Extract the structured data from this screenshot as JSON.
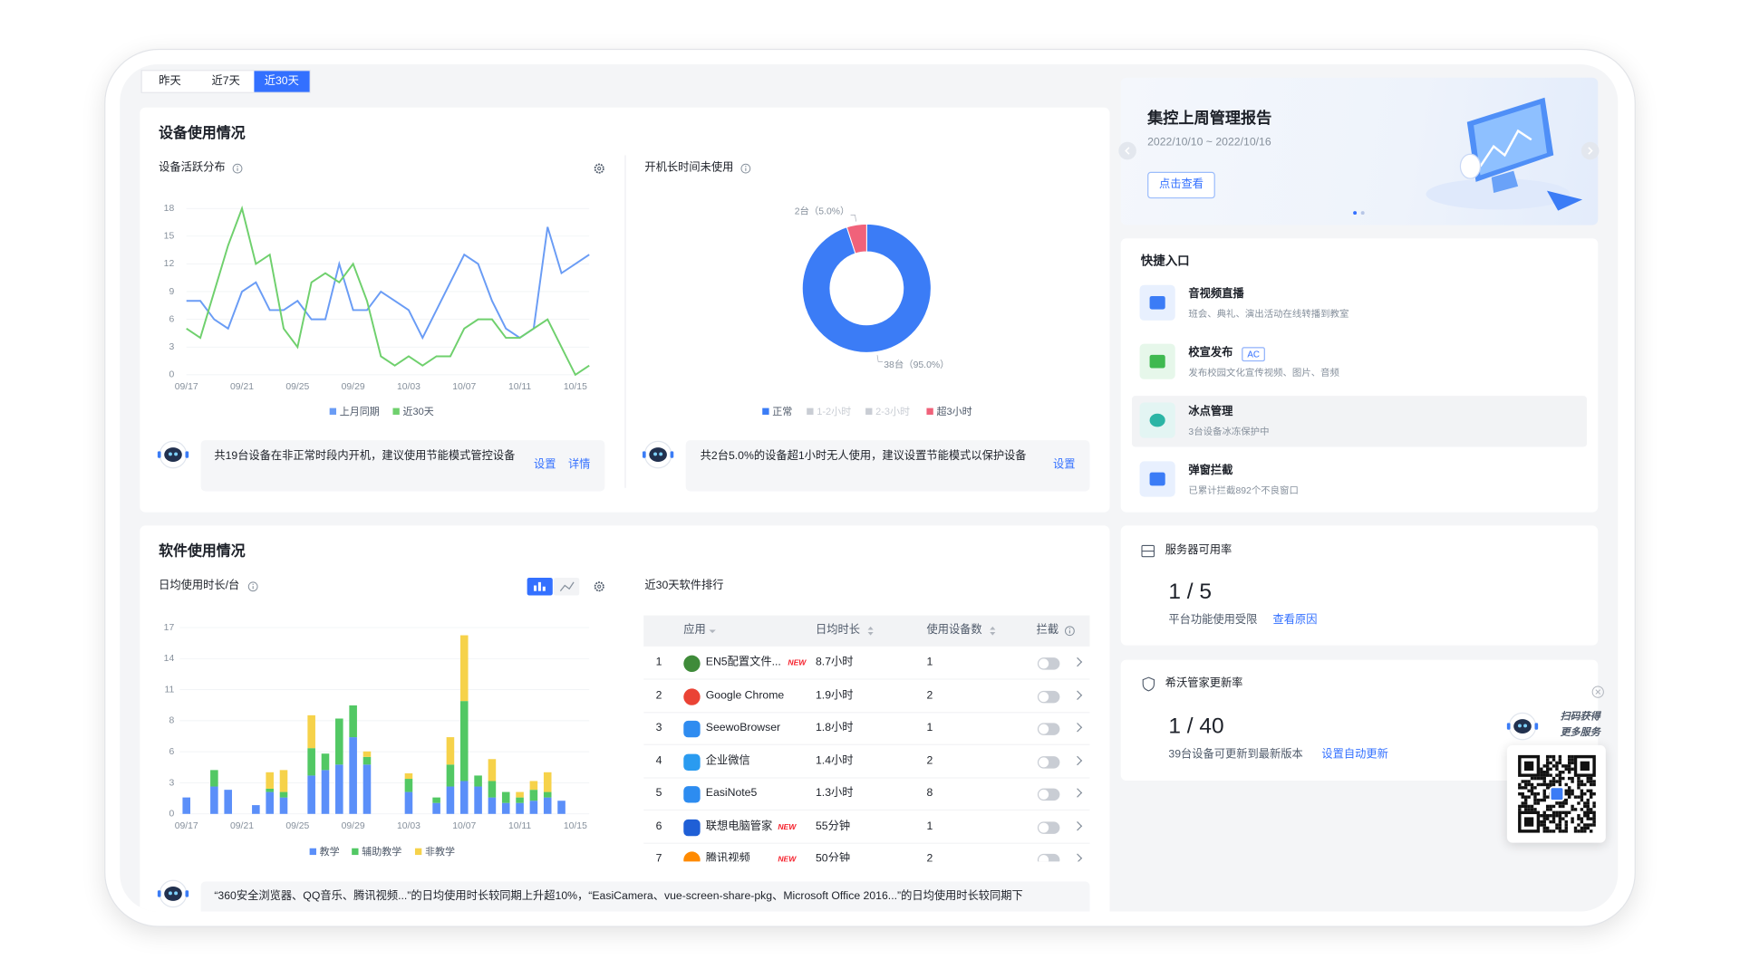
{
  "tabs": [
    "昨天",
    "近7天",
    "近30天"
  ],
  "active_tab": 2,
  "device_usage": {
    "title": "设备使用情况",
    "activity": {
      "title": "设备活跃分布",
      "chart": {
        "type": "line",
        "categories": [
          "09/17",
          null,
          null,
          null,
          "09/21",
          null,
          null,
          null,
          "09/25",
          null,
          null,
          null,
          "09/29",
          null,
          null,
          null,
          "10/03",
          null,
          null,
          null,
          "10/07",
          null,
          null,
          null,
          "10/11",
          null,
          null,
          null,
          "10/15",
          null
        ],
        "series": [
          {
            "name": "上月同期",
            "color": "#6a9cf5",
            "values": [
              8,
              8,
              6,
              5,
              9,
              10,
              7,
              7,
              8,
              6,
              6,
              12,
              7,
              7,
              9,
              8,
              7,
              4,
              7,
              10,
              13,
              12,
              8,
              5,
              4,
              5,
              16,
              11,
              12,
              13
            ]
          },
          {
            "name": "近30天",
            "color": "#6fd06d",
            "values": [
              5,
              4,
              9,
              14,
              18,
              12,
              13,
              5,
              3,
              10,
              11,
              10,
              12,
              8,
              2,
              1,
              2,
              1,
              2,
              2,
              5,
              6,
              6,
              4,
              4,
              5,
              6,
              3,
              0,
              1
            ]
          }
        ],
        "ylim": [
          0,
          18
        ],
        "yticks": [
          0,
          3,
          6,
          9,
          12,
          15,
          18
        ],
        "grid": true
      },
      "tip": "共19台设备在非正常时段内开机，建议使用节能模式管控设备",
      "links": [
        "设置",
        "详情"
      ]
    },
    "idle": {
      "title": "开机长时间未使用",
      "chart": {
        "type": "donut",
        "categories": [
          "正常",
          "1-2小时",
          "2-3小时",
          "超3小时"
        ],
        "values": [
          38,
          0,
          0,
          2
        ],
        "value_labels": [
          "38台（95.0%）",
          null,
          null,
          "2台（5.0%）"
        ],
        "colors": [
          "#3b7cf6",
          "#c9cdd4",
          "#c9cdd4",
          "#f0627a"
        ],
        "active": [
          true,
          false,
          false,
          true
        ]
      },
      "tip": "共2台5.0%的设备超1小时无人使用，建议设置节能模式以保护设备",
      "links": [
        "设置"
      ]
    }
  },
  "software_usage": {
    "title": "软件使用情况",
    "daily": {
      "title": "日均使用时长/台",
      "chart": {
        "type": "stacked_bar",
        "categories": [
          "09/17",
          null,
          null,
          null,
          "09/21",
          null,
          null,
          null,
          "09/25",
          null,
          null,
          null,
          "09/29",
          null,
          null,
          null,
          "10/03",
          null,
          null,
          null,
          "10/07",
          null,
          null,
          null,
          "10/11",
          null,
          null,
          null,
          "10/15",
          null
        ],
        "series": [
          {
            "name": "教学",
            "color": "#5b8ff9",
            "values": [
              1.5,
              0,
              2.5,
              2.2,
              0,
              0.8,
              2,
              1.5,
              0,
              3.5,
              4,
              4.5,
              7,
              4.5,
              0,
              0,
              2,
              0,
              1,
              2.5,
              3,
              2.5,
              1.5,
              1,
              1,
              1.2,
              1.5,
              1.2,
              0,
              0
            ]
          },
          {
            "name": "辅助教学",
            "color": "#52c864",
            "values": [
              0,
              0,
              1.5,
              0,
              0,
              0,
              0.3,
              0.5,
              0,
              2.5,
              1.5,
              4.2,
              2.9,
              0.7,
              0,
              0,
              1.2,
              0,
              0.5,
              2,
              7.3,
              1,
              1.5,
              1,
              0.5,
              1,
              0.5,
              0,
              0,
              0
            ]
          },
          {
            "name": "非教学",
            "color": "#f6d24a",
            "values": [
              0,
              0,
              0,
              0,
              0,
              0,
              1.5,
              2,
              0,
              3,
              0,
              0,
              0,
              0.5,
              0,
              0,
              0.5,
              0,
              0,
              2.5,
              6,
              0,
              2,
              0,
              0.5,
              0.8,
              1.8,
              0,
              0,
              0
            ]
          }
        ],
        "ylim": [
          0,
          17
        ],
        "yticks": [
          0,
          {
            "value": 2.83,
            "label": "3"
          },
          {
            "value": 5.67,
            "label": "6"
          },
          {
            "value": 8.5,
            "label": "8"
          },
          {
            "value": 11.33,
            "label": "11"
          },
          {
            "value": 14.17,
            "label": "14"
          },
          17
        ],
        "grid": true
      }
    },
    "ranking": {
      "title": "近30天软件排行",
      "columns": [
        "应用",
        "日均时长",
        "使用设备数",
        "拦截"
      ],
      "rows": [
        {
          "rank": "1",
          "name": "EN5配置文件...",
          "badge": "NEW",
          "duration": "8.7小时",
          "devices": "1",
          "intercept": false
        },
        {
          "rank": "2",
          "name": "Google Chrome",
          "duration": "1.9小时",
          "devices": "2",
          "intercept": false
        },
        {
          "rank": "3",
          "name": "SeewoBrowser",
          "duration": "1.8小时",
          "devices": "1",
          "intercept": false
        },
        {
          "rank": "4",
          "name": "企业微信",
          "duration": "1.4小时",
          "devices": "2",
          "intercept": false
        },
        {
          "rank": "5",
          "name": "EasiNote5",
          "duration": "1.3小时",
          "devices": "8",
          "intercept": false
        },
        {
          "rank": "6",
          "name": "联想电脑管家",
          "badge": "NEW",
          "duration": "55分钟",
          "devices": "1",
          "intercept": false
        },
        {
          "rank": "7",
          "name": "腾讯视频",
          "badge": "NEW",
          "duration": "50分钟",
          "devices": "2",
          "intercept": false
        }
      ]
    },
    "tip": "“360安全浏览器、QQ音乐、腾讯视频...”的日均使用时长较同期上升超10%，“EasiCamera、vue-screen-share-pkg、Microsoft Office 2016...”的日均使用时长较同期下"
  },
  "report": {
    "title": "集控上周管理报告",
    "date_range": "2022/10/10 ~ 2022/10/16",
    "button": "点击查看"
  },
  "quick_entry": {
    "title": "快捷入口",
    "highlighted": 2,
    "items": [
      {
        "title": "音视频直播",
        "desc": "班会、典礼、演出活动在线转播到教室"
      },
      {
        "title": "校宣发布",
        "tag": "AC",
        "desc": "发布校园文化宣传视频、图片、音频"
      },
      {
        "title": "冰点管理",
        "desc": "3台设备冰冻保护中"
      },
      {
        "title": "弹窗拦截",
        "desc": "已累计拦截892个不良窗口"
      }
    ]
  },
  "server": {
    "title": "服务器可用率",
    "ratio": "1 / 5",
    "desc": "平台功能使用受限",
    "link": "查看原因"
  },
  "update": {
    "title": "希沃管家更新率",
    "ratio": "1 / 40",
    "desc": "39台设备可更新到最新版本",
    "link": "设置自动更新"
  },
  "qr": {
    "lines": [
      "扫码获得",
      "更多服务"
    ]
  }
}
